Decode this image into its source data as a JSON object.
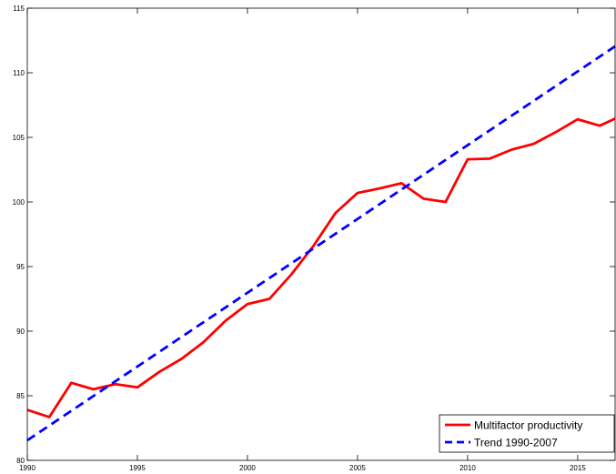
{
  "chart_data": {
    "type": "line",
    "xlim": [
      1990,
      2016.7
    ],
    "ylim": [
      80,
      115
    ],
    "x_ticks": [
      1990,
      1995,
      2000,
      2005,
      2010,
      2015
    ],
    "y_ticks": [
      80,
      85,
      90,
      95,
      100,
      105,
      110,
      115
    ],
    "grid": false,
    "legend_position": "bottom-right",
    "series": [
      {
        "name": "Multifactor productivity",
        "color": "#ff0000",
        "style": "solid",
        "x": [
          1990,
          1991,
          1992,
          1993,
          1994,
          1995,
          1996,
          1997,
          1998,
          1999,
          2000,
          2001,
          2002,
          2003,
          2004,
          2005,
          2006,
          2007,
          2008,
          2009,
          2010,
          2011,
          2012,
          2013,
          2014,
          2015,
          2016,
          2016.7
        ],
        "y": [
          83.9,
          83.35,
          86.0,
          85.5,
          85.9,
          85.65,
          86.85,
          87.85,
          89.15,
          90.8,
          92.1,
          92.5,
          94.4,
          96.6,
          99.15,
          100.7,
          101.05,
          101.45,
          100.25,
          100.0,
          103.3,
          103.35,
          104.05,
          104.5,
          105.4,
          106.4,
          105.9,
          106.45
        ]
      },
      {
        "name": "Trend 1990-2007",
        "color": "#0000ff",
        "style": "dashed",
        "x": [
          1990,
          2016.7
        ],
        "y": [
          81.55,
          112.05
        ]
      }
    ]
  }
}
